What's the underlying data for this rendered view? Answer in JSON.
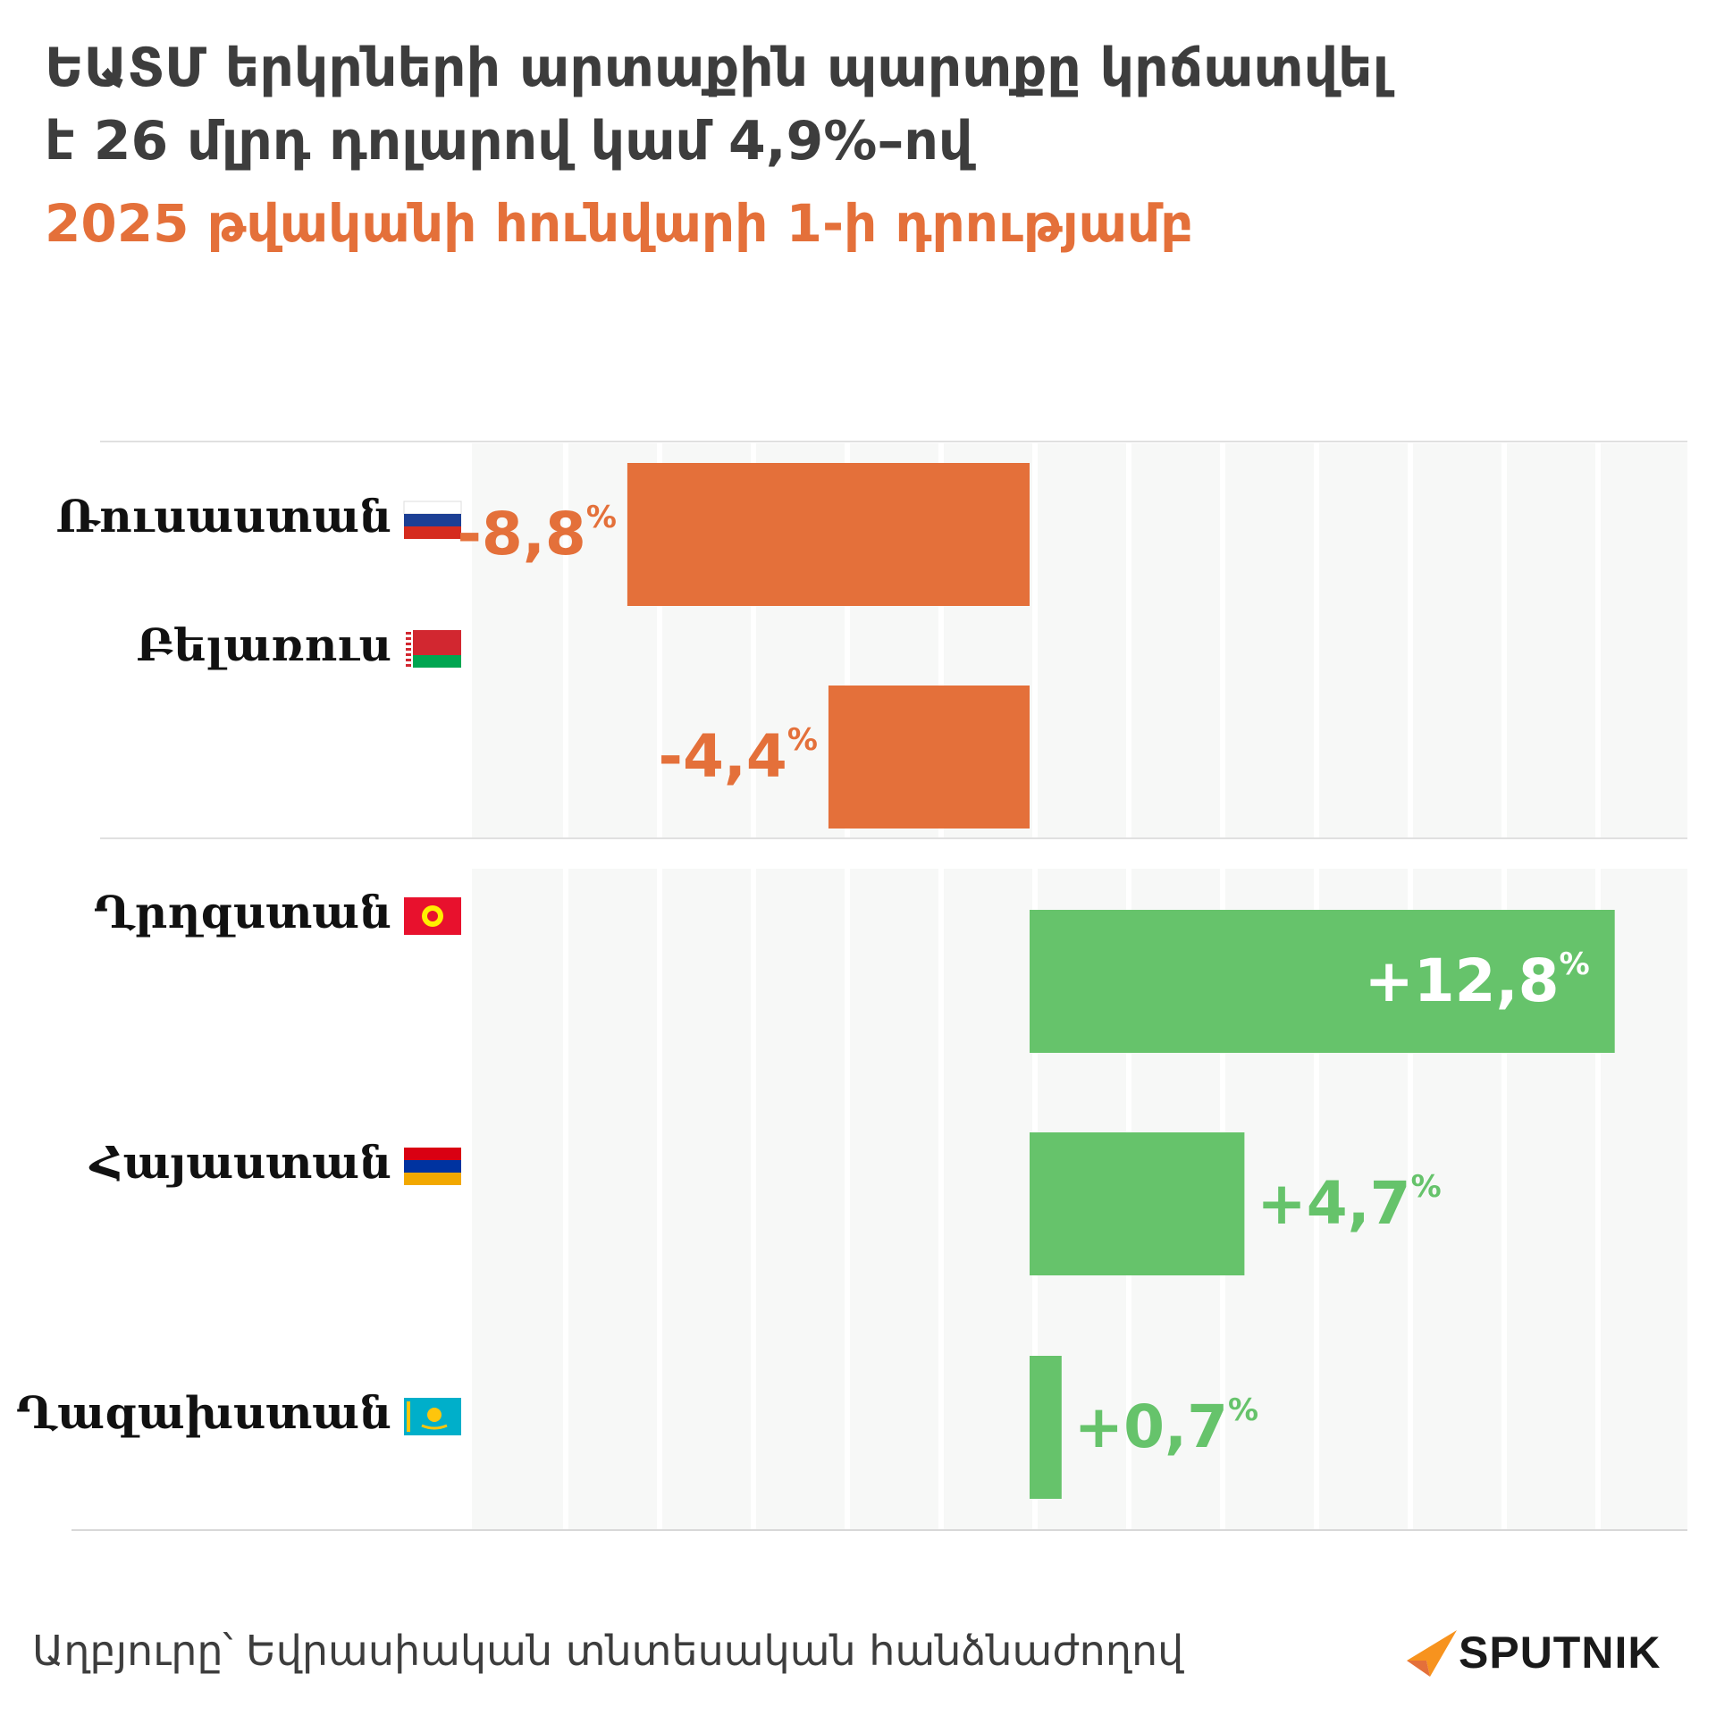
{
  "header": {
    "title_line1": "ԵԱՏՄ երկրների արտաքին պարտքը կրճատվել",
    "title_line2": "է 26 մլրդ դոլարով կամ 4,9%–ով",
    "subtitle": "2025 թվականի հունվարի 1-ի դրությամբ"
  },
  "chart_data": {
    "type": "bar",
    "orientation": "horizontal",
    "categories": [
      "Ռուսաստան",
      "Բելառուս",
      "Ղրղզստան",
      "Հայաստան",
      "Ղազախստան"
    ],
    "values": [
      -8.8,
      -4.4,
      12.8,
      4.7,
      0.7
    ],
    "value_labels": [
      "-8,8",
      "-4,4",
      "+12,8",
      "+4,7",
      "+0,7"
    ],
    "value_suffix": "%",
    "flags": [
      "flag-russia-icon",
      "flag-belarus-icon",
      "flag-kyrgyzstan-icon",
      "flag-armenia-icon",
      "flag-kazakhstan-icon"
    ],
    "negative_color": "#e4703a",
    "positive_color": "#66c36b",
    "xlim": [
      -12.2,
      14.4
    ],
    "grid": true
  },
  "footer": {
    "source": "Աղբյուրը՝ Եվրասիական տնտեսական հանձնաժողով",
    "logo_text": "SPUTNIK"
  }
}
